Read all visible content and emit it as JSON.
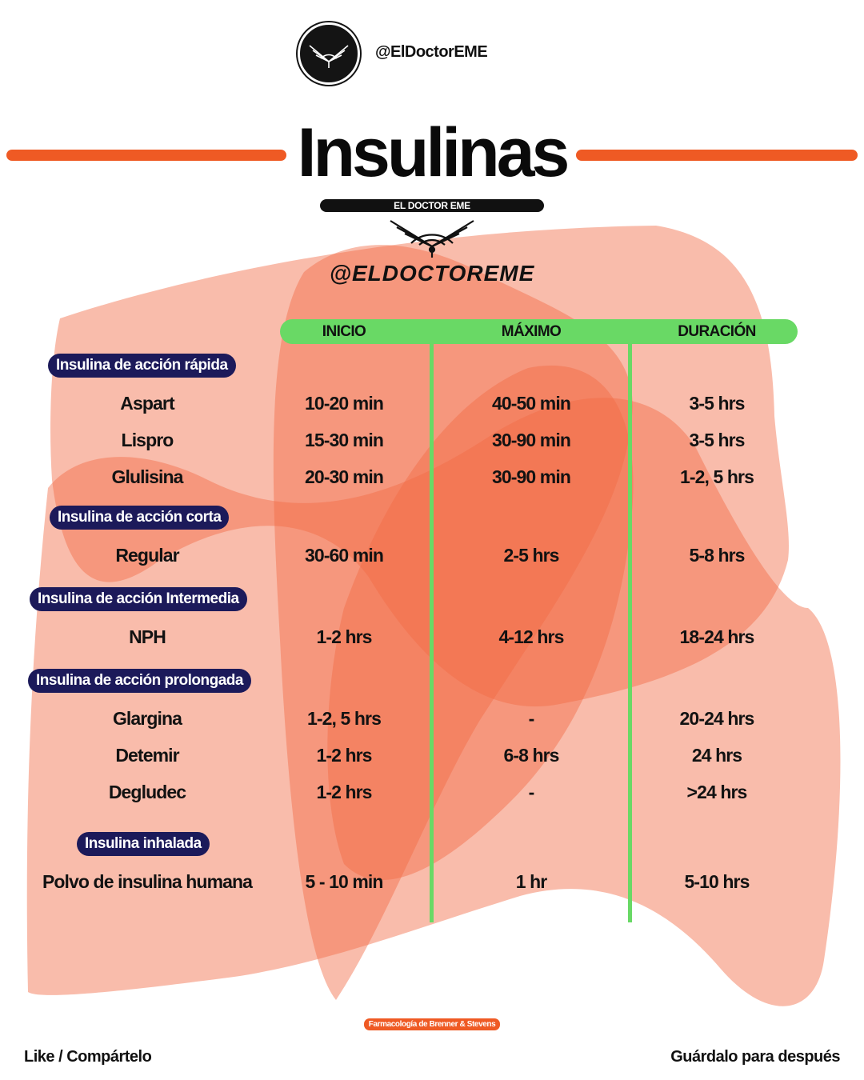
{
  "header": {
    "handle": "@ElDoctorEME",
    "title": "Insulinas",
    "brand_bar": "EL DOCTOR EME",
    "brand_handle": "@ELDOCTOREME"
  },
  "columns": {
    "inicio": "INICIO",
    "maximo": "MÁXIMO",
    "duracion": "DURACIÓN"
  },
  "groups": [
    {
      "category": "Insulina de acción rápida",
      "rows": [
        {
          "name": "Aspart",
          "inicio": "10-20 min",
          "maximo": "40-50 min",
          "duracion": "3-5 hrs"
        },
        {
          "name": "Lispro",
          "inicio": "15-30 min",
          "maximo": "30-90 min",
          "duracion": "3-5 hrs"
        },
        {
          "name": "Glulisina",
          "inicio": "20-30 min",
          "maximo": "30-90 min",
          "duracion": "1-2, 5 hrs"
        }
      ]
    },
    {
      "category": "Insulina de acción corta",
      "rows": [
        {
          "name": "Regular",
          "inicio": "30-60 min",
          "maximo": "2-5 hrs",
          "duracion": "5-8 hrs"
        }
      ]
    },
    {
      "category": "Insulina de acción Intermedia",
      "rows": [
        {
          "name": "NPH",
          "inicio": "1-2 hrs",
          "maximo": "4-12 hrs",
          "duracion": "18-24 hrs"
        }
      ]
    },
    {
      "category": "Insulina de acción prolongada",
      "rows": [
        {
          "name": "Glargina",
          "inicio": "1-2, 5 hrs",
          "maximo": "-",
          "duracion": "20-24 hrs"
        },
        {
          "name": "Detemir",
          "inicio": "1-2 hrs",
          "maximo": "6-8 hrs",
          "duracion": "24 hrs"
        },
        {
          "name": "Degludec",
          "inicio": "1-2 hrs",
          "maximo": "-",
          "duracion": ">24 hrs"
        }
      ]
    },
    {
      "category": "Insulina inhalada",
      "rows": [
        {
          "name": "Polvo de insulina humana",
          "inicio": "5 - 10 min",
          "maximo": "1 hr",
          "duracion": "5-10 hrs"
        }
      ]
    }
  ],
  "source": "Farmacología de Brenner & Stevens",
  "footer": {
    "left": "Like / Compártelo",
    "right": "Guárdalo para después"
  },
  "colors": {
    "accent_orange": "#ef5a24",
    "header_green": "#69d965",
    "pill_navy": "#1c1a5a",
    "blob": "#f26b45"
  },
  "icons": {
    "avatar": "winged-caduceus-logo-icon",
    "brand": "winged-caduceus-logo-icon"
  }
}
